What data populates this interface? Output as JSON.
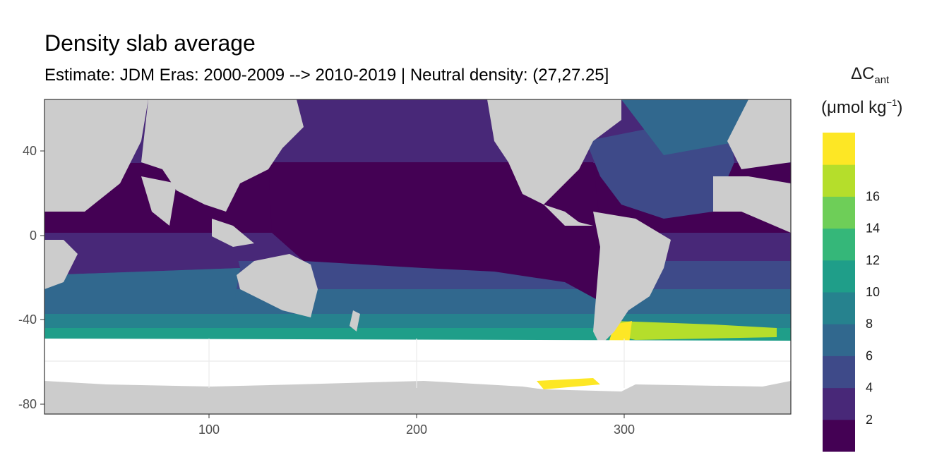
{
  "title": "Density slab average",
  "subtitle": "Estimate: JDM Eras: 2000-2009 --> 2010-2019 | Neutral density: (27,27.25]",
  "map": {
    "x_range": [
      20,
      380
    ],
    "y_range": [
      -85,
      65
    ],
    "x_ticks": [
      100,
      200,
      300
    ],
    "y_ticks": [
      40,
      0,
      -40,
      -80
    ],
    "land_color": "#cccccc",
    "nodata_color": "#ffffff",
    "panel_border": "#333333"
  },
  "legend": {
    "title_main": "ΔC",
    "title_sub": "ant",
    "unit_prefix": "(μmol kg",
    "unit_sup": "−1",
    "unit_suffix": ")",
    "breaks": [
      2,
      4,
      6,
      8,
      10,
      12,
      14,
      16
    ],
    "colors": [
      "#440154",
      "#482878",
      "#3e4a89",
      "#31688e",
      "#26828e",
      "#1f9e89",
      "#35b779",
      "#6ece58",
      "#b5de2b",
      "#fde725"
    ]
  }
}
